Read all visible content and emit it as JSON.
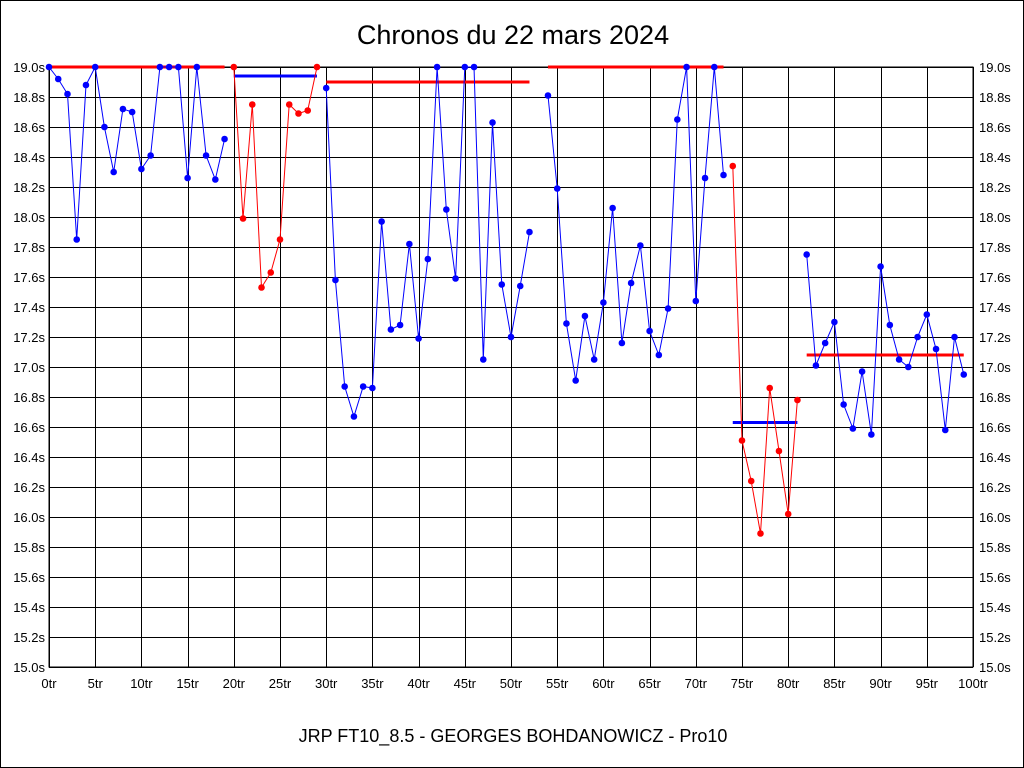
{
  "chart_data": {
    "type": "line",
    "title": "Chronos du 22 mars 2024",
    "subtitle": "JRP FT10_8.5 - GEORGES BOHDANOWICZ - Pro10",
    "xlabel": "",
    "ylabel": "",
    "xlim": [
      0,
      100
    ],
    "ylim": [
      15.0,
      19.0
    ],
    "grid": true,
    "x_ticks": [
      "0tr",
      "5tr",
      "10tr",
      "15tr",
      "20tr",
      "25tr",
      "30tr",
      "35tr",
      "40tr",
      "45tr",
      "50tr",
      "55tr",
      "60tr",
      "65tr",
      "70tr",
      "75tr",
      "80tr",
      "85tr",
      "90tr",
      "95tr",
      "100tr"
    ],
    "y_ticks_left": [
      "15.0s",
      "15.2s",
      "15.4s",
      "15.6s",
      "15.8s",
      "16.0s",
      "16.2s",
      "16.4s",
      "16.6s",
      "16.8s",
      "17.0s",
      "17.2s",
      "17.4s",
      "17.6s",
      "17.8s",
      "18.0s",
      "18.2s",
      "18.4s",
      "18.6s",
      "18.8s",
      "19.0s"
    ],
    "y_ticks_right": [
      "15.0s",
      "15.2s",
      "15.4s",
      "15.6s",
      "15.8s",
      "16.0s",
      "16.2s",
      "16.4s",
      "16.6s",
      "16.8s",
      "17.0s",
      "17.2s",
      "17.4s",
      "17.6s",
      "17.8s",
      "18.0s",
      "18.2s",
      "18.4s",
      "18.6s",
      "18.8s",
      "19.0s"
    ],
    "colors": {
      "blue": "#0000ff",
      "red": "#ff0000",
      "grid": "#000000"
    },
    "series": [
      {
        "color": "#0000ff",
        "x": [
          0,
          1,
          2,
          3,
          4,
          5,
          6,
          7,
          8,
          9,
          10,
          11,
          12,
          13,
          14,
          15,
          16,
          17,
          18,
          19
        ],
        "y": [
          19.0,
          18.92,
          18.82,
          17.85,
          18.88,
          19.0,
          18.6,
          18.3,
          18.72,
          18.7,
          18.32,
          18.41,
          19.0,
          19.0,
          19.0,
          18.26,
          19.0,
          18.41,
          18.25,
          18.52
        ]
      },
      {
        "color": "#ff0000",
        "x": [
          20,
          21,
          22,
          23,
          24,
          25,
          26,
          27,
          28,
          29
        ],
        "y": [
          19.0,
          17.99,
          18.75,
          17.53,
          17.63,
          17.85,
          18.75,
          18.69,
          18.71,
          19.0
        ]
      },
      {
        "color": "#0000ff",
        "x": [
          30,
          31,
          32,
          33,
          34,
          35,
          36,
          37,
          38,
          39,
          40,
          41,
          42,
          43,
          44,
          45,
          46,
          47,
          48,
          49,
          50,
          51,
          52
        ],
        "y": [
          18.86,
          17.58,
          16.87,
          16.67,
          16.87,
          16.86,
          17.97,
          17.25,
          17.28,
          17.82,
          17.19,
          17.72,
          19.0,
          18.05,
          17.59,
          19.0,
          19.0,
          17.05,
          18.63,
          17.55,
          17.2,
          17.54,
          17.9
        ]
      },
      {
        "color": "#0000ff",
        "x": [
          54,
          55,
          56,
          57,
          58,
          59,
          60,
          61,
          62,
          63,
          64,
          65,
          66,
          67,
          68,
          69,
          70,
          71,
          72,
          73
        ],
        "y": [
          18.81,
          18.19,
          17.29,
          16.91,
          17.34,
          17.05,
          17.43,
          18.06,
          17.16,
          17.56,
          17.81,
          17.24,
          17.08,
          17.39,
          18.65,
          19.0,
          17.44,
          18.26,
          19.0,
          18.28
        ]
      },
      {
        "color": "#ff0000",
        "x": [
          74,
          75,
          76,
          77,
          78,
          79,
          80,
          81
        ],
        "y": [
          18.34,
          16.51,
          16.24,
          15.89,
          16.86,
          16.44,
          16.02,
          16.78
        ]
      },
      {
        "color": "#0000ff",
        "x": [
          82,
          83,
          84,
          85,
          86,
          87,
          88,
          89,
          90,
          91,
          92,
          93,
          94,
          95,
          96,
          97,
          98,
          99
        ],
        "y": [
          17.75,
          17.01,
          17.16,
          17.3,
          16.75,
          16.59,
          16.97,
          16.55,
          17.67,
          17.28,
          17.05,
          17.0,
          17.2,
          17.35,
          17.12,
          16.58,
          17.2,
          16.95
        ]
      }
    ],
    "average_lines": [
      {
        "color": "#ff0000",
        "x_start": 0,
        "x_end": 19,
        "y": 19.0
      },
      {
        "color": "#0000ff",
        "x_start": 20,
        "x_end": 29,
        "y": 18.94
      },
      {
        "color": "#ff0000",
        "x_start": 30,
        "x_end": 52,
        "y": 18.9
      },
      {
        "color": "#ff0000",
        "x_start": 54,
        "x_end": 73,
        "y": 19.0
      },
      {
        "color": "#0000ff",
        "x_start": 74,
        "x_end": 81,
        "y": 16.63
      },
      {
        "color": "#ff0000",
        "x_start": 82,
        "x_end": 99,
        "y": 17.08
      }
    ]
  }
}
